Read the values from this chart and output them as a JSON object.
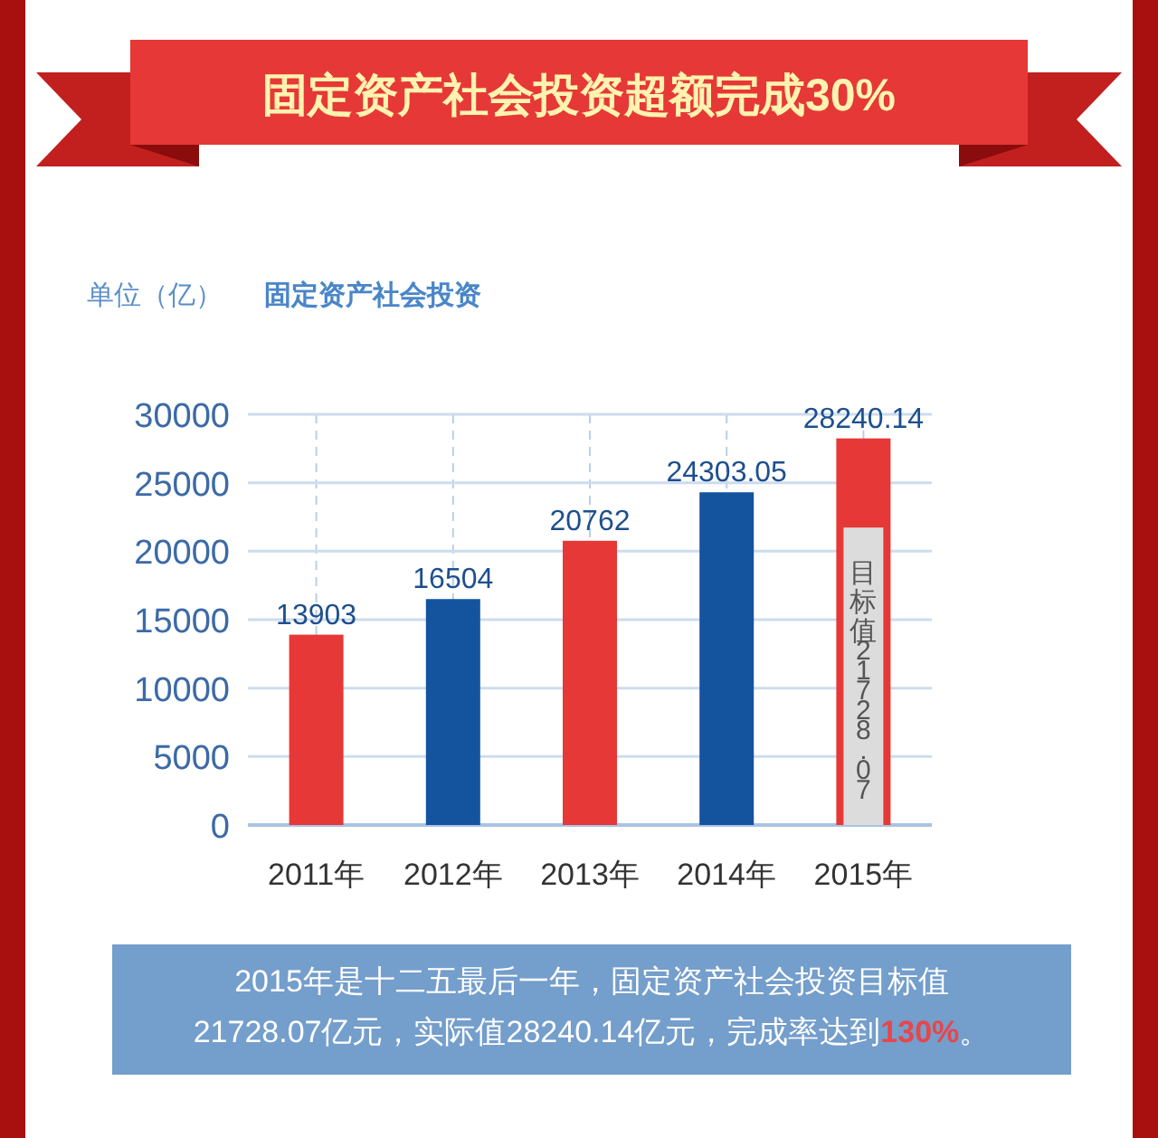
{
  "chart_data": {
    "type": "bar",
    "title": "固定资产社会投资超额完成30%",
    "subtitle": "固定资产社会投资",
    "ylabel": "单位（亿）",
    "categories": [
      "2011年",
      "2012年",
      "2013年",
      "2014年",
      "2015年"
    ],
    "series": [
      {
        "colors": [
          "#e63836",
          "#14539e",
          "#e63836",
          "#14539e",
          "#e63836"
        ],
        "values": [
          13903,
          16504,
          20762,
          24303.05,
          28240.14
        ],
        "data_labels": true
      },
      {
        "color": "#dcdcdc",
        "values": [
          null,
          null,
          null,
          null,
          21728.07
        ],
        "value_labels": [
          null,
          null,
          null,
          null,
          "目标值21728.07"
        ]
      }
    ],
    "ylim": [
      0,
      30000
    ],
    "yticks": [
      0,
      5000,
      10000,
      15000,
      20000,
      25000,
      30000
    ],
    "grid": true,
    "annotations": [
      "2015年是十二五最后一年，固定资产社会投资目标值21728.07亿元，实际值28240.14亿元，完成率达到130%。"
    ]
  }
}
